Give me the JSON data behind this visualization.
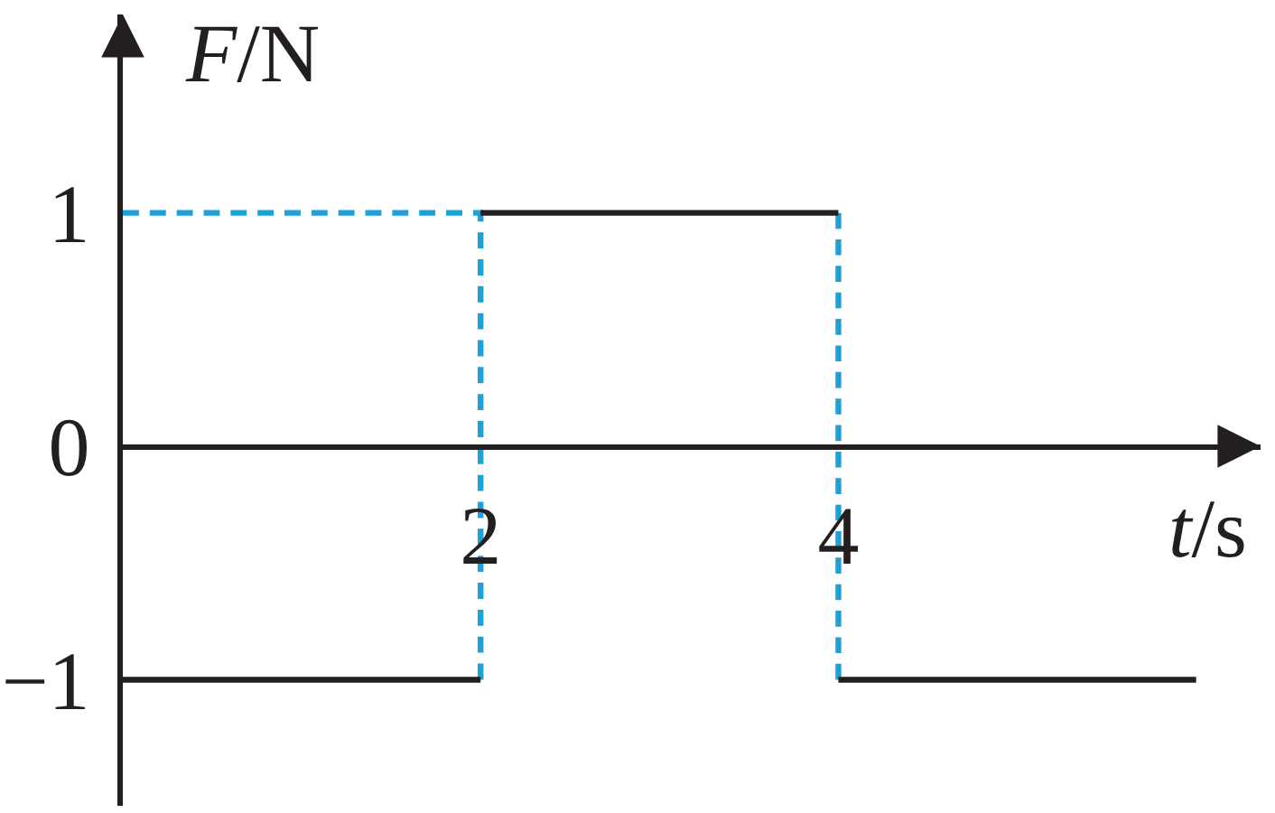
{
  "chart_data": {
    "type": "line",
    "xlabel": "t/s",
    "ylabel": "F/N",
    "xlim": [
      0,
      6.36
    ],
    "ylim": [
      -1.54,
      1.85
    ],
    "xticks": [
      2,
      4
    ],
    "yticks": [
      1,
      0,
      {
        "value": -1,
        "label": "−1"
      }
    ],
    "series": [
      {
        "color": "#1ea0d8",
        "line_style": "dashed",
        "x": [
          0,
          2,
          2
        ],
        "values": [
          1,
          1,
          -1
        ]
      },
      {
        "color": "#1ea0d8",
        "line_style": "dashed",
        "x": [
          4,
          4
        ],
        "values": [
          1,
          -1
        ]
      },
      {
        "color": "#231f20",
        "line_style": "solid",
        "x": [
          0,
          2
        ],
        "values": [
          -1,
          -1
        ]
      },
      {
        "color": "#231f20",
        "line_style": "solid",
        "x": [
          2,
          4
        ],
        "values": [
          1,
          1
        ]
      },
      {
        "color": "#231f20",
        "line_style": "solid",
        "x": [
          4,
          6
        ],
        "values": [
          -1,
          -1
        ]
      }
    ]
  }
}
